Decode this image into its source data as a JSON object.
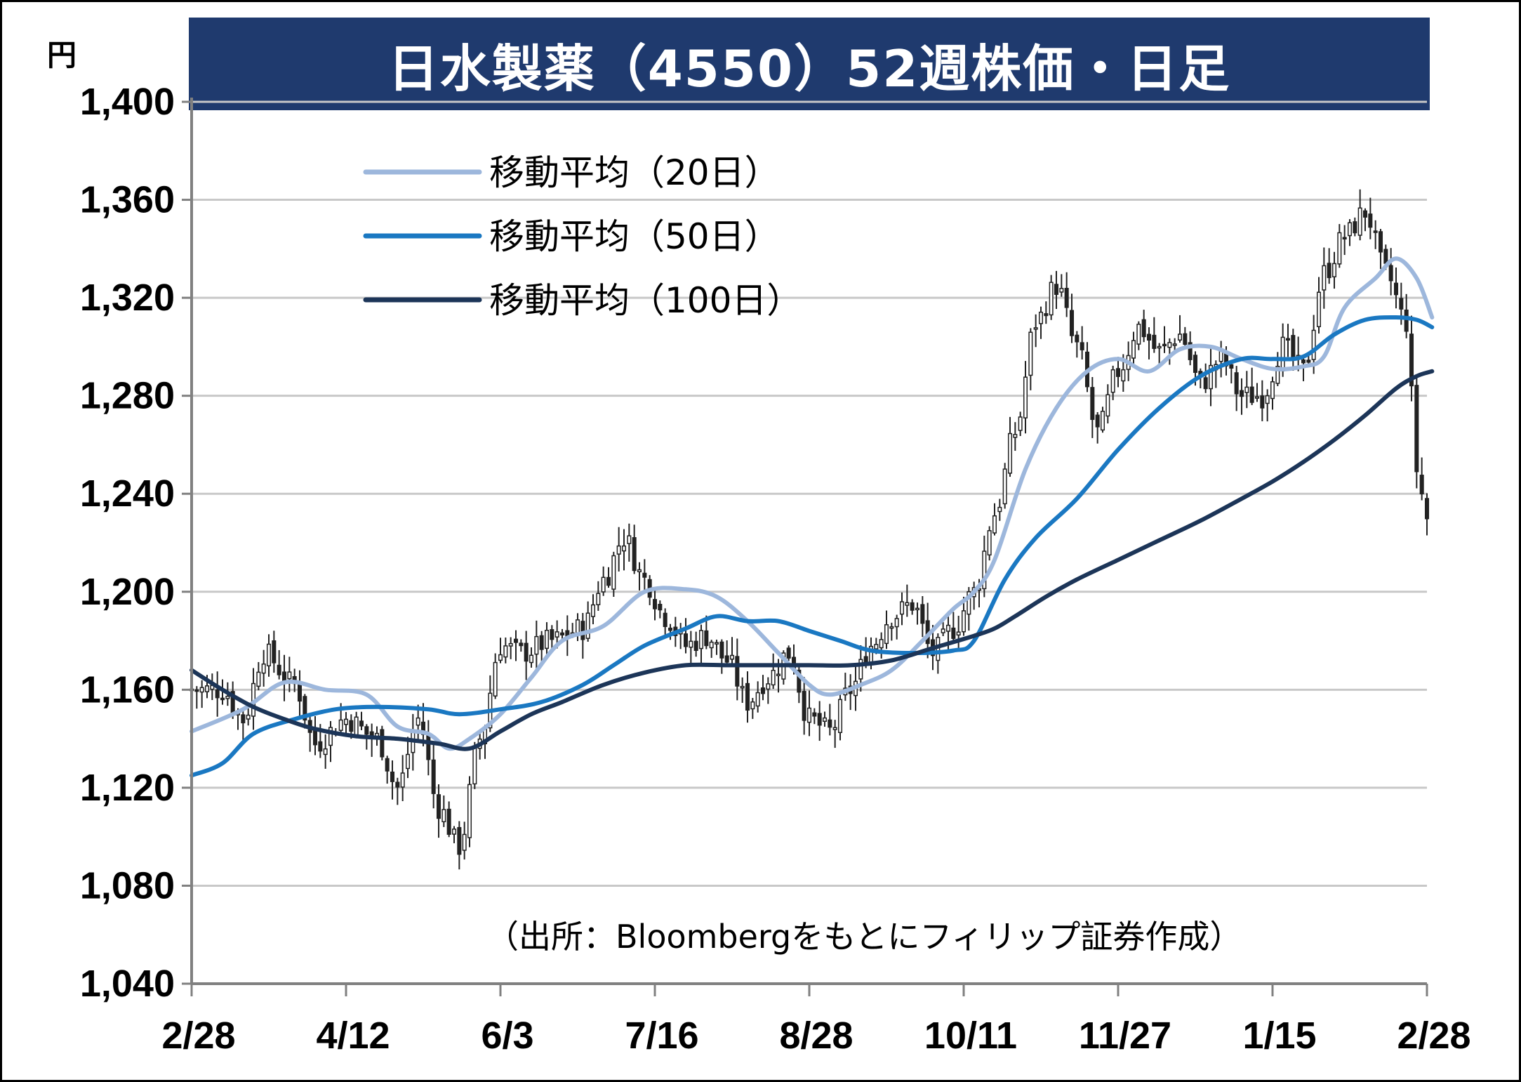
{
  "title": "日水製薬（4550）52週株価・日足",
  "unit": "円",
  "source": "（出所：Bloombergをもとにフィリップ証券作成）",
  "chart_data": {
    "type": "candlestick",
    "ylim": [
      1040,
      1400
    ],
    "yticks": [
      1040,
      1080,
      1120,
      1160,
      1200,
      1240,
      1280,
      1320,
      1360,
      1400
    ],
    "ytick_labels": [
      "1,040",
      "1,080",
      "1,120",
      "1,160",
      "1,200",
      "1,240",
      "1,280",
      "1,320",
      "1,360",
      "1,400"
    ],
    "xticks": [
      {
        "label": "2/28",
        "day": 0
      },
      {
        "label": "4/12",
        "day": 30
      },
      {
        "label": "6/3",
        "day": 60
      },
      {
        "label": "7/16",
        "day": 90
      },
      {
        "label": "8/28",
        "day": 120
      },
      {
        "label": "10/11",
        "day": 150
      },
      {
        "label": "11/27",
        "day": 180
      },
      {
        "label": "1/15",
        "day": 210
      },
      {
        "label": "2/28",
        "day": 240
      }
    ],
    "grid": true,
    "legend_position": "top-left",
    "candle_count": 241,
    "price_anchors": [
      [
        0,
        1160
      ],
      [
        6,
        1160
      ],
      [
        10,
        1148
      ],
      [
        14,
        1175
      ],
      [
        20,
        1162
      ],
      [
        24,
        1138
      ],
      [
        30,
        1148
      ],
      [
        36,
        1140
      ],
      [
        40,
        1120
      ],
      [
        44,
        1148
      ],
      [
        48,
        1112
      ],
      [
        52,
        1096
      ],
      [
        56,
        1140
      ],
      [
        60,
        1178
      ],
      [
        64,
        1175
      ],
      [
        70,
        1180
      ],
      [
        76,
        1185
      ],
      [
        80,
        1205
      ],
      [
        84,
        1222
      ],
      [
        88,
        1205
      ],
      [
        92,
        1190
      ],
      [
        96,
        1178
      ],
      [
        100,
        1182
      ],
      [
        104,
        1172
      ],
      [
        108,
        1155
      ],
      [
        112,
        1165
      ],
      [
        116,
        1175
      ],
      [
        120,
        1148
      ],
      [
        124,
        1143
      ],
      [
        128,
        1160
      ],
      [
        132,
        1178
      ],
      [
        136,
        1190
      ],
      [
        140,
        1195
      ],
      [
        144,
        1175
      ],
      [
        148,
        1185
      ],
      [
        152,
        1200
      ],
      [
        156,
        1232
      ],
      [
        160,
        1265
      ],
      [
        164,
        1310
      ],
      [
        168,
        1325
      ],
      [
        172,
        1300
      ],
      [
        176,
        1265
      ],
      [
        180,
        1290
      ],
      [
        184,
        1308
      ],
      [
        188,
        1298
      ],
      [
        192,
        1305
      ],
      [
        196,
        1285
      ],
      [
        200,
        1295
      ],
      [
        204,
        1280
      ],
      [
        208,
        1280
      ],
      [
        212,
        1300
      ],
      [
        216,
        1290
      ],
      [
        220,
        1330
      ],
      [
        224,
        1345
      ],
      [
        228,
        1355
      ],
      [
        232,
        1330
      ],
      [
        236,
        1310
      ],
      [
        238,
        1250
      ],
      [
        240,
        1230
      ]
    ],
    "series": [
      {
        "name": "移動平均（20日）",
        "color": "#9db7dc",
        "points": [
          [
            0,
            1143
          ],
          [
            10,
            1152
          ],
          [
            18,
            1163
          ],
          [
            26,
            1160
          ],
          [
            34,
            1158
          ],
          [
            40,
            1145
          ],
          [
            46,
            1142
          ],
          [
            50,
            1136
          ],
          [
            54,
            1140
          ],
          [
            60,
            1150
          ],
          [
            66,
            1165
          ],
          [
            72,
            1180
          ],
          [
            80,
            1186
          ],
          [
            88,
            1200
          ],
          [
            96,
            1201
          ],
          [
            102,
            1198
          ],
          [
            108,
            1188
          ],
          [
            114,
            1175
          ],
          [
            120,
            1162
          ],
          [
            124,
            1158
          ],
          [
            130,
            1162
          ],
          [
            136,
            1168
          ],
          [
            142,
            1180
          ],
          [
            148,
            1193
          ],
          [
            152,
            1200
          ],
          [
            156,
            1213
          ],
          [
            162,
            1250
          ],
          [
            168,
            1275
          ],
          [
            174,
            1290
          ],
          [
            180,
            1295
          ],
          [
            186,
            1290
          ],
          [
            192,
            1299
          ],
          [
            198,
            1300
          ],
          [
            204,
            1295
          ],
          [
            210,
            1291
          ],
          [
            216,
            1292
          ],
          [
            220,
            1296
          ],
          [
            224,
            1316
          ],
          [
            230,
            1328
          ],
          [
            234,
            1336
          ],
          [
            238,
            1328
          ],
          [
            241,
            1312
          ]
        ]
      },
      {
        "name": "移動平均（50日）",
        "color": "#1a78c2",
        "points": [
          [
            0,
            1125
          ],
          [
            6,
            1130
          ],
          [
            12,
            1142
          ],
          [
            20,
            1148
          ],
          [
            28,
            1152
          ],
          [
            36,
            1153
          ],
          [
            46,
            1152
          ],
          [
            52,
            1150
          ],
          [
            60,
            1152
          ],
          [
            68,
            1155
          ],
          [
            76,
            1162
          ],
          [
            82,
            1170
          ],
          [
            88,
            1178
          ],
          [
            96,
            1185
          ],
          [
            102,
            1190
          ],
          [
            108,
            1188
          ],
          [
            114,
            1188
          ],
          [
            120,
            1184
          ],
          [
            126,
            1180
          ],
          [
            132,
            1176
          ],
          [
            140,
            1175
          ],
          [
            148,
            1176
          ],
          [
            152,
            1180
          ],
          [
            158,
            1205
          ],
          [
            164,
            1222
          ],
          [
            172,
            1238
          ],
          [
            180,
            1258
          ],
          [
            188,
            1275
          ],
          [
            196,
            1288
          ],
          [
            204,
            1295
          ],
          [
            210,
            1295
          ],
          [
            216,
            1296
          ],
          [
            222,
            1305
          ],
          [
            228,
            1311
          ],
          [
            234,
            1312
          ],
          [
            238,
            1311
          ],
          [
            241,
            1308
          ]
        ]
      },
      {
        "name": "移動平均（100日）",
        "color": "#1c3558",
        "points": [
          [
            0,
            1168
          ],
          [
            6,
            1160
          ],
          [
            12,
            1153
          ],
          [
            18,
            1148
          ],
          [
            24,
            1144
          ],
          [
            32,
            1141
          ],
          [
            40,
            1140
          ],
          [
            48,
            1138
          ],
          [
            54,
            1136
          ],
          [
            60,
            1143
          ],
          [
            66,
            1150
          ],
          [
            72,
            1155
          ],
          [
            80,
            1162
          ],
          [
            88,
            1167
          ],
          [
            96,
            1170
          ],
          [
            104,
            1170
          ],
          [
            112,
            1170
          ],
          [
            120,
            1170
          ],
          [
            128,
            1170
          ],
          [
            136,
            1172
          ],
          [
            144,
            1177
          ],
          [
            152,
            1182
          ],
          [
            156,
            1185
          ],
          [
            160,
            1190
          ],
          [
            166,
            1198
          ],
          [
            172,
            1205
          ],
          [
            180,
            1213
          ],
          [
            188,
            1221
          ],
          [
            196,
            1229
          ],
          [
            204,
            1238
          ],
          [
            210,
            1245
          ],
          [
            216,
            1253
          ],
          [
            222,
            1262
          ],
          [
            228,
            1272
          ],
          [
            234,
            1283
          ],
          [
            238,
            1288
          ],
          [
            241,
            1290
          ]
        ]
      }
    ]
  }
}
